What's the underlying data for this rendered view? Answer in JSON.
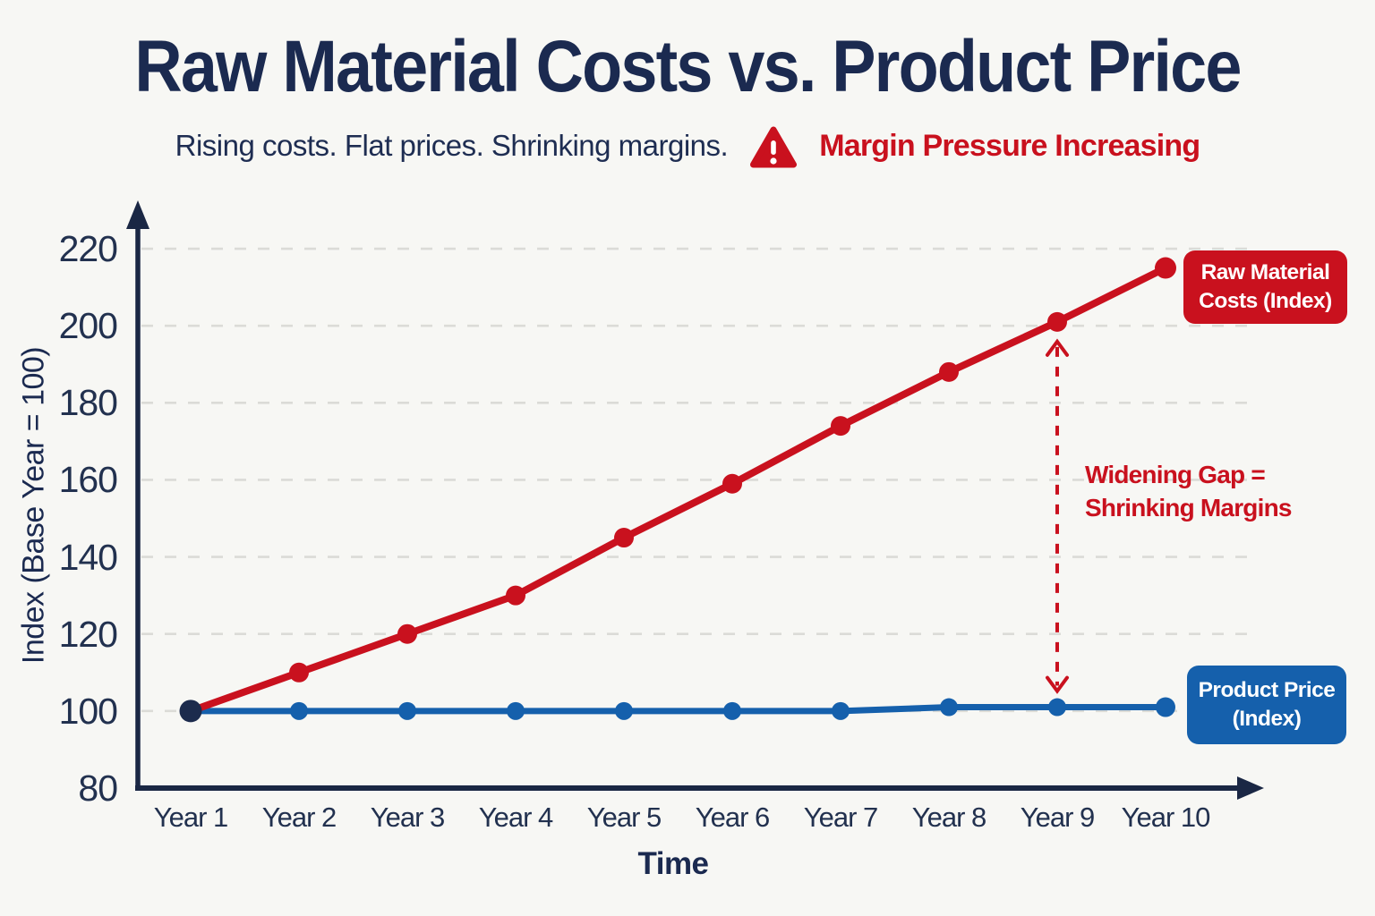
{
  "page": {
    "title": "Raw Material Costs vs. Product Price",
    "subtitle": "Rising costs. Flat prices. Shrinking margins.",
    "alert": "Margin Pressure Increasing"
  },
  "colors": {
    "navy": "#1b2a50",
    "axis": "#1a2744",
    "red": "#c9111e",
    "blue": "#1560ac",
    "grid": "#dbdbd7",
    "first_point_dot": "#1c2b4d",
    "background": "#f7f7f4",
    "badge_text": "#ffffff"
  },
  "chart_data": {
    "type": "line",
    "categories": [
      "Year 1",
      "Year 2",
      "Year 3",
      "Year 4",
      "Year 5",
      "Year 6",
      "Year 7",
      "Year 8",
      "Year 9",
      "Year 10"
    ],
    "series": [
      {
        "name": "Raw Material Costs (Index)",
        "color": "#c9111e",
        "values": [
          100,
          110,
          120,
          130,
          145,
          159,
          174,
          188,
          201,
          215
        ]
      },
      {
        "name": "Product Price (Index)",
        "color": "#1560ac",
        "values": [
          100,
          100,
          100,
          100,
          100,
          100,
          100,
          101,
          101,
          101
        ]
      }
    ],
    "xlabel": "Time",
    "ylabel": "Index (Base Year = 100)",
    "ylim": [
      80,
      220
    ],
    "yticks": [
      80,
      100,
      120,
      140,
      160,
      180,
      200,
      220
    ],
    "grid": "horizontal-dashed",
    "legend_position": "inline-badges-right",
    "gap_arrow_at_category": "Year 9",
    "annotation": {
      "line1": "Widening Gap =",
      "line2": "Shrinking Margins"
    },
    "badges": {
      "raw_line1": "Raw Material",
      "raw_line2": "Costs (Index)",
      "price_line1": "Product Price",
      "price_line2": "(Index)"
    }
  }
}
